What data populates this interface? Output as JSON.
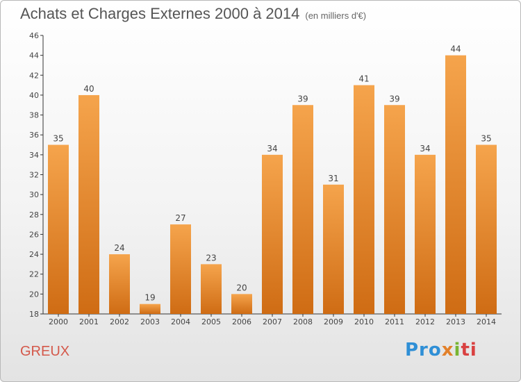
{
  "header": {
    "title": "Achats et Charges Externes 2000 à 2014",
    "subtitle": "(en milliers d'€)"
  },
  "footer": {
    "town": "GREUX",
    "logo": [
      "Pro",
      "x",
      "i",
      "ti"
    ]
  },
  "colors": {
    "bar_light": "#f5a44c",
    "bar_dark": "#cf6c14",
    "town": "#d4584a"
  },
  "chart_data": {
    "type": "bar",
    "title": "Achats et Charges Externes 2000 à 2014",
    "subtitle": "(en milliers d'€)",
    "xlabel": "",
    "ylabel": "",
    "categories": [
      "2000",
      "2001",
      "2002",
      "2003",
      "2004",
      "2005",
      "2006",
      "2007",
      "2008",
      "2009",
      "2010",
      "2011",
      "2012",
      "2013",
      "2014"
    ],
    "values": [
      35,
      40,
      24,
      19,
      27,
      23,
      20,
      34,
      39,
      31,
      41,
      39,
      34,
      44,
      35
    ],
    "ylim": [
      18,
      46
    ],
    "yticks": [
      18,
      20,
      22,
      24,
      26,
      28,
      30,
      32,
      34,
      36,
      38,
      40,
      42,
      44,
      46
    ],
    "grid": false,
    "legend": "none"
  }
}
